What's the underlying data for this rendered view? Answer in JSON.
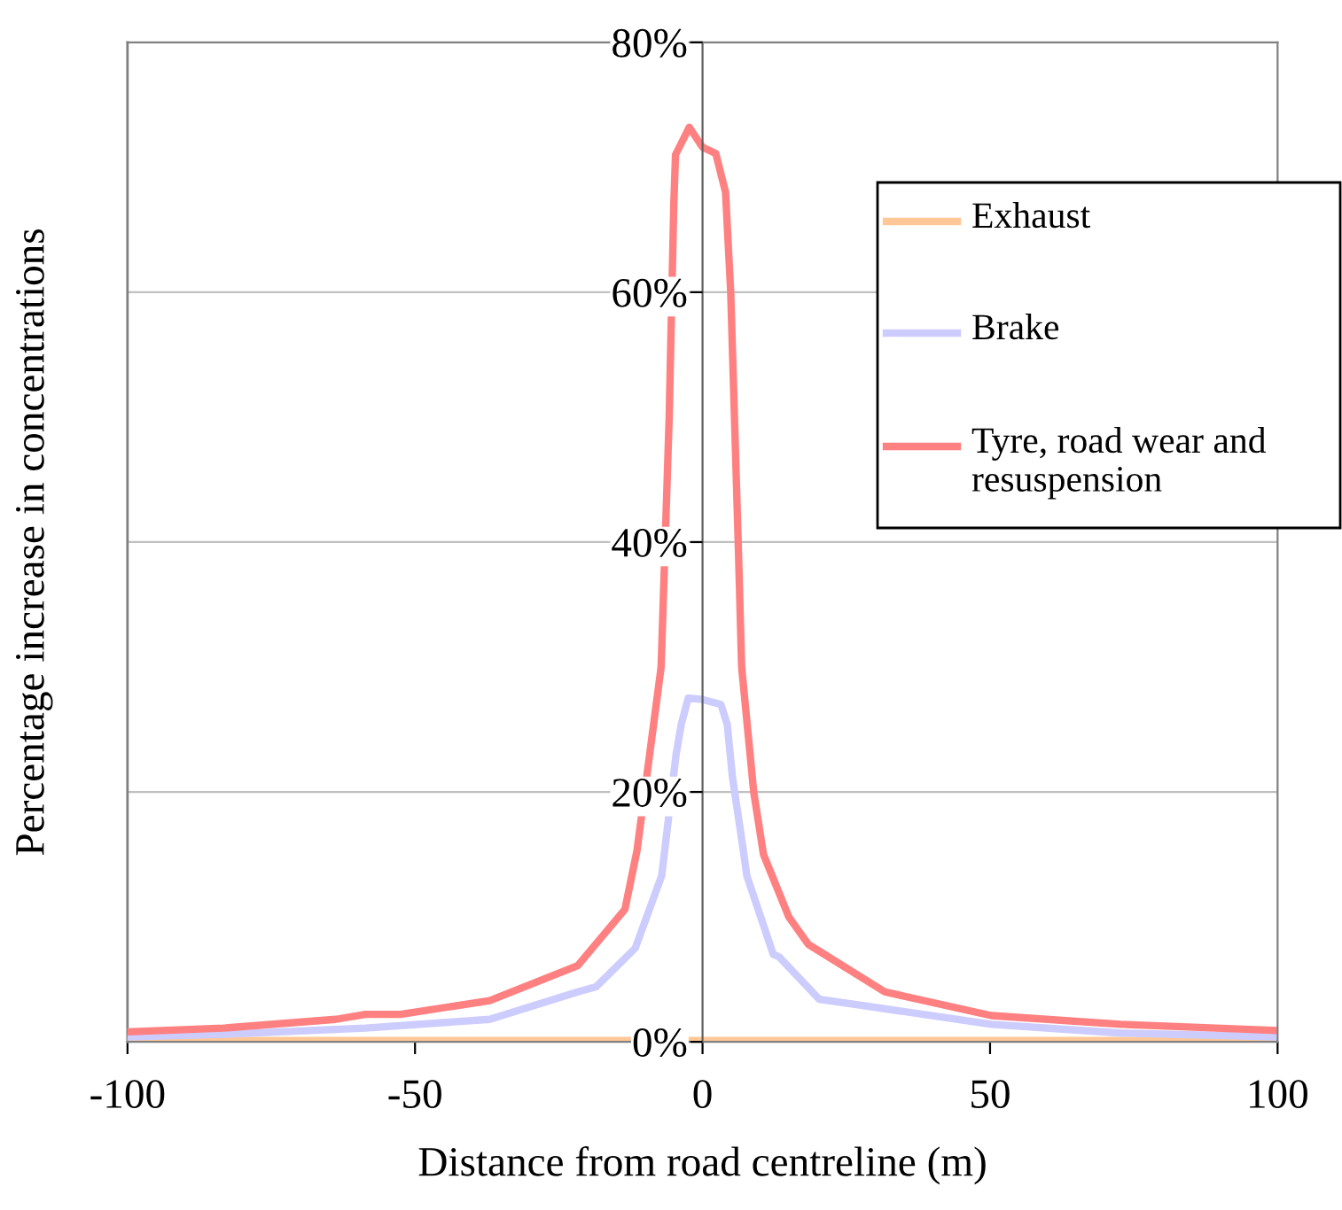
{
  "chart_data": {
    "type": "line",
    "xlabel": "Distance from road centreline (m)",
    "ylabel": "Percentage increase in concentrations",
    "xlim": [
      -100,
      100
    ],
    "xticks": [
      -100,
      -50,
      0,
      50,
      100
    ],
    "ylim": [
      0,
      80
    ],
    "yticks": [
      {
        "value": 0,
        "label": "0%"
      },
      {
        "value": 20,
        "label": "20%"
      },
      {
        "value": 40,
        "label": "40%"
      },
      {
        "value": 60,
        "label": "60%"
      },
      {
        "value": 80,
        "label": "80%"
      }
    ],
    "grid": "y",
    "legend": "top right",
    "marker": "none",
    "line_style": "solid",
    "series": [
      {
        "name": "Exhaust",
        "color": "#ffc896",
        "x": [
          -100,
          -50,
          0,
          50,
          100
        ],
        "values": [
          0.1,
          0.1,
          0.1,
          0.1,
          0.1
        ]
      },
      {
        "name": "Brake",
        "color": "#ccccff",
        "x": [
          -100,
          -83,
          -58.6,
          -37,
          -21.7,
          -18.5,
          -11.7,
          -7.1,
          -4.6,
          -3.7,
          -2.5,
          0,
          3.2,
          4.3,
          5.2,
          7.1,
          7.7,
          12.3,
          13.3,
          20.3,
          26.5,
          50.2,
          72.7,
          100
        ],
        "values": [
          0.4,
          0.6,
          1.1,
          1.8,
          4.0,
          4.4,
          7.5,
          13.3,
          23,
          25.4,
          27.5,
          27.4,
          27.0,
          25.4,
          21.2,
          15.3,
          13.3,
          7.0,
          6.8,
          3.4,
          3.0,
          1.4,
          0.7,
          0.4
        ]
      },
      {
        "name": "Tyre, road wear and resuspension",
        "color": "#ff8080",
        "x": [
          -100,
          -83.3,
          -63.8,
          -58.6,
          -52.5,
          -37,
          -21.7,
          -13.5,
          -11.4,
          -7.2,
          -5.8,
          -5.0,
          -4.7,
          -2.3,
          0,
          2.3,
          4,
          4.9,
          6.2,
          6.8,
          8.9,
          10.6,
          15,
          18.4,
          31.7,
          50.2,
          72.7,
          100
        ],
        "values": [
          0.8,
          1.1,
          1.8,
          2.2,
          2.2,
          3.3,
          6.1,
          10.6,
          15.3,
          30,
          50,
          67,
          71,
          73.2,
          71.6,
          71.1,
          68,
          60,
          40,
          30,
          20,
          15,
          10,
          7.8,
          4.0,
          2.1,
          1.4,
          0.9
        ]
      }
    ]
  }
}
